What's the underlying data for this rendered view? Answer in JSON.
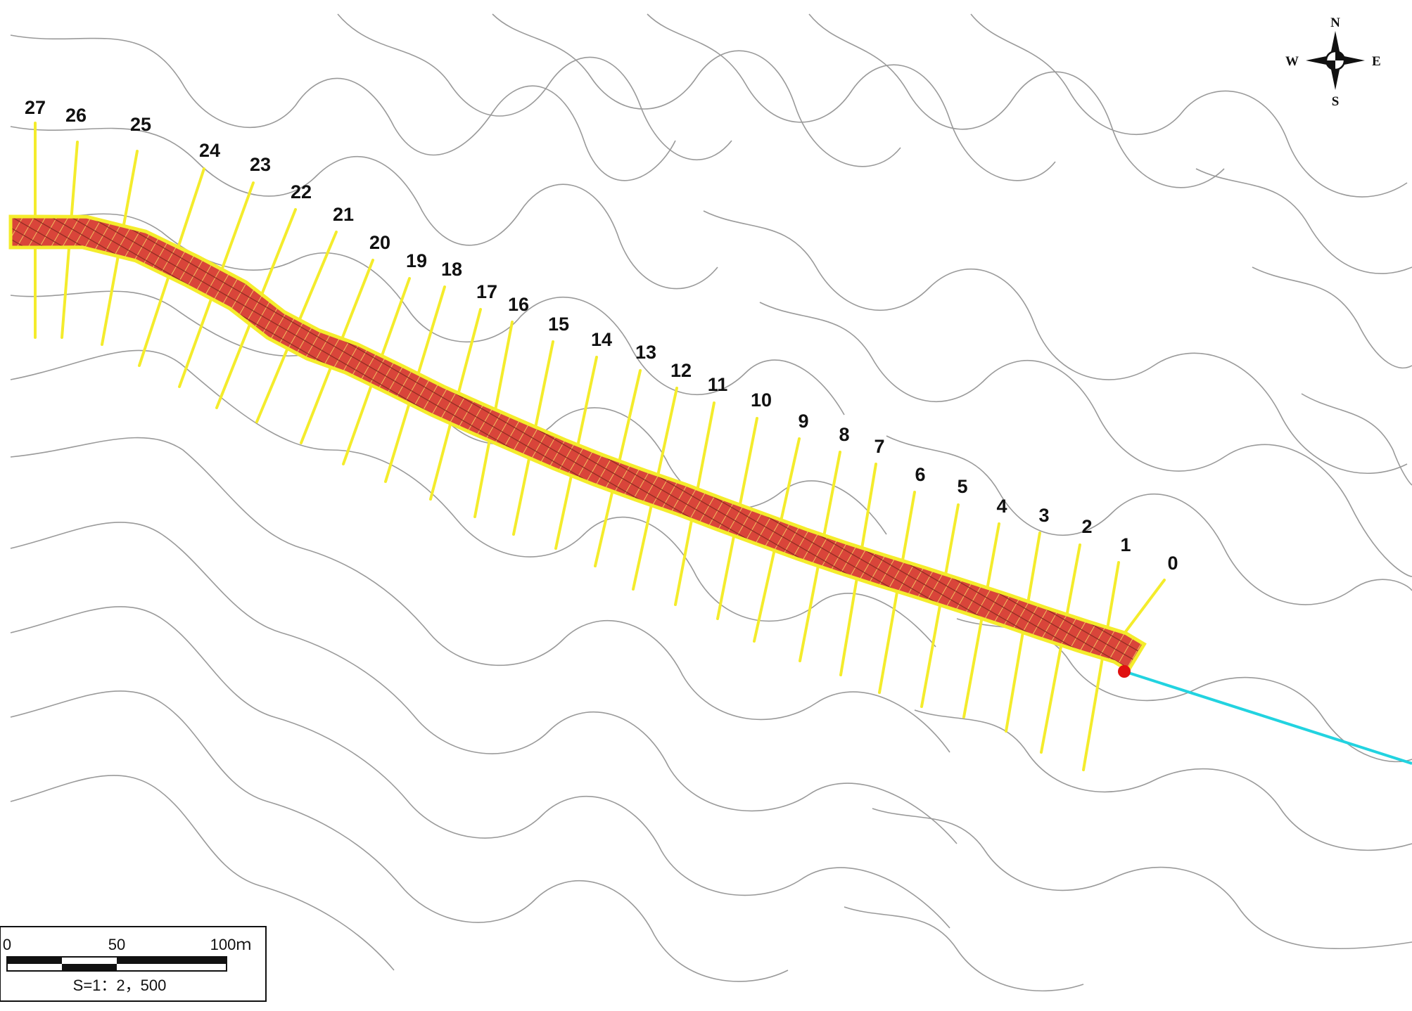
{
  "map": {
    "stations": [
      "0",
      "1",
      "2",
      "3",
      "4",
      "5",
      "6",
      "7",
      "8",
      "9",
      "10",
      "11",
      "12",
      "13",
      "14",
      "15",
      "16",
      "17",
      "18",
      "19",
      "20",
      "21",
      "22",
      "23",
      "24",
      "25",
      "26",
      "27"
    ],
    "compass": {
      "north": "N",
      "south": "S",
      "east": "E",
      "west": "W"
    },
    "scale_bar": {
      "tick_0": "0",
      "tick_50": "50",
      "tick_100": "100ｍ",
      "ratio": "S=1：2，500"
    },
    "colors": {
      "contour": "#9a9a9a",
      "section_line": "#f4ec2c",
      "corridor_fill": "#d9453a",
      "corridor_outline": "#f4ec2c",
      "downstream_channel": "#22d3e0",
      "start_point": "#e01010"
    }
  }
}
